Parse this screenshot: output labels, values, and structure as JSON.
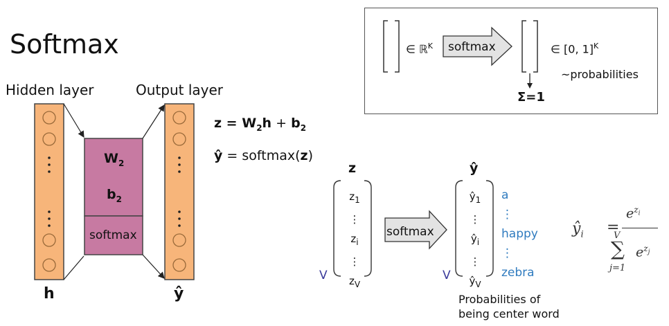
{
  "title": "Softmax",
  "network": {
    "hidden_label": "Hidden layer",
    "output_label": "Output layer",
    "h_label": "h",
    "yhat_label": "ŷ",
    "weight_label": "W",
    "weight_sub": "2",
    "bias_label": "b",
    "bias_sub": "2",
    "softmax_label": "softmax",
    "layer_color": "#f7b57a",
    "matrix_color": "#c77aa2"
  },
  "equations": {
    "z_lhs": "z = ",
    "z_w": "W",
    "z_w_sub": "2",
    "z_h": "h",
    "z_plus": " + ",
    "z_b": "b",
    "z_b_sub": "2",
    "yhat_lhs": "ŷ",
    "yhat_rhs": " = softmax(",
    "yhat_z": "z",
    "yhat_close": ")"
  },
  "box": {
    "in_domain": "∈ ℝ",
    "in_domain_sup": "K",
    "arrow_label": "softmax",
    "out_domain": "∈ [0, 1]",
    "out_domain_sup": "K",
    "probabilities": "~probabilities",
    "sum": "Σ=1"
  },
  "vectors": {
    "z_header": "z",
    "z_items": [
      "z",
      "⋮",
      "z",
      "⋮",
      "z"
    ],
    "z_subs": [
      "1",
      "",
      "i",
      "",
      "V"
    ],
    "v_label": "V",
    "arrow_label": "softmax",
    "y_header": "ŷ",
    "y_items": [
      "ŷ",
      "⋮",
      "ŷ",
      "⋮",
      "ŷ"
    ],
    "y_subs": [
      "1",
      "",
      "i",
      "",
      "V"
    ],
    "words": [
      "a",
      "⋮",
      "happy",
      "⋮",
      "zebra"
    ],
    "caption_line1": "Probabilities of",
    "caption_line2": "being center word"
  },
  "formula": {
    "lhs": "ŷ",
    "lhs_sub": "i",
    "eq": "=",
    "num_base": "e",
    "num_sup": "z",
    "num_sup_sub": "i",
    "sum_top": "V",
    "sum_sym": "∑",
    "sum_bottom": "j=1",
    "den_base": "e",
    "den_sup": "z",
    "den_sup_sub": "j"
  }
}
